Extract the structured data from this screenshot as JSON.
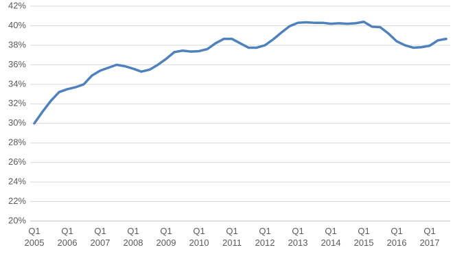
{
  "chart_data": {
    "type": "line",
    "categories": [
      "Q1 2005",
      null,
      null,
      null,
      "Q1 2006",
      null,
      null,
      null,
      "Q1 2007",
      null,
      null,
      null,
      "Q1 2008",
      null,
      null,
      null,
      "Q1 2009",
      null,
      null,
      null,
      "Q1 2010",
      null,
      null,
      null,
      "Q1 2011",
      null,
      null,
      null,
      "Q1 2012",
      null,
      null,
      null,
      "Q1 2013",
      null,
      null,
      null,
      "Q1 2014",
      null,
      null,
      null,
      "Q1 2015",
      null,
      null,
      null,
      "Q1 2016",
      null,
      null,
      null,
      "Q1 2017",
      null,
      null
    ],
    "values": [
      30.0,
      31.2,
      32.3,
      33.2,
      33.5,
      33.7,
      34.0,
      34.9,
      35.4,
      35.7,
      36.0,
      35.85,
      35.6,
      35.3,
      35.5,
      36.0,
      36.6,
      37.3,
      37.45,
      37.35,
      37.4,
      37.6,
      38.2,
      38.65,
      38.65,
      38.2,
      37.75,
      37.75,
      38.0,
      38.6,
      39.3,
      39.95,
      40.3,
      40.35,
      40.3,
      40.3,
      40.2,
      40.25,
      40.2,
      40.25,
      40.4,
      39.9,
      39.85,
      39.2,
      38.4,
      38.0,
      37.75,
      37.8,
      37.95,
      38.5,
      38.65
    ],
    "color": "#4f81bd",
    "ylim": [
      20,
      42
    ],
    "yticks": [
      {
        "value": 20,
        "label": "20%"
      },
      {
        "value": 22,
        "label": "22%"
      },
      {
        "value": 24,
        "label": "24%"
      },
      {
        "value": 26,
        "label": "26%"
      },
      {
        "value": 28,
        "label": "28%"
      },
      {
        "value": 30,
        "label": "30%"
      },
      {
        "value": 32,
        "label": "32%"
      },
      {
        "value": 34,
        "label": "34%"
      },
      {
        "value": 36,
        "label": "36%"
      },
      {
        "value": 38,
        "label": "38%"
      },
      {
        "value": 40,
        "label": "40%"
      },
      {
        "value": 42,
        "label": "42%"
      }
    ],
    "grid": true
  }
}
